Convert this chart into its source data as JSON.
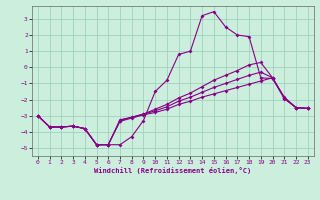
{
  "xlabel": "Windchill (Refroidissement éolien,°C)",
  "xlim": [
    -0.5,
    23.5
  ],
  "ylim": [
    -5.5,
    3.8
  ],
  "yticks": [
    3,
    2,
    1,
    0,
    -1,
    -2,
    -3,
    -4,
    -5
  ],
  "xticks": [
    0,
    1,
    2,
    3,
    4,
    5,
    6,
    7,
    8,
    9,
    10,
    11,
    12,
    13,
    14,
    15,
    16,
    17,
    18,
    19,
    20,
    21,
    22,
    23
  ],
  "bg_color": "#cceedd",
  "grid_color": "#99ccbb",
  "line_color": "#880088",
  "line1_x": [
    0,
    1,
    2,
    3,
    4,
    5,
    6,
    7,
    8,
    9,
    10,
    11,
    12,
    13,
    14,
    15,
    16,
    17,
    18,
    19,
    20,
    21,
    22,
    23
  ],
  "line1_y": [
    -3.0,
    -3.7,
    -3.7,
    -3.65,
    -3.8,
    -4.8,
    -4.8,
    -4.8,
    -4.3,
    -3.3,
    -1.5,
    -0.8,
    0.8,
    1.0,
    3.2,
    3.45,
    2.5,
    2.0,
    1.9,
    -0.65,
    -0.7,
    -1.9,
    -2.5,
    -2.55
  ],
  "line2_x": [
    0,
    1,
    2,
    3,
    4,
    5,
    6,
    7,
    8,
    9,
    10,
    11,
    12,
    13,
    14,
    15,
    16,
    17,
    18,
    19,
    20,
    21,
    22,
    23
  ],
  "line2_y": [
    -3.0,
    -3.7,
    -3.7,
    -3.65,
    -3.8,
    -4.8,
    -4.8,
    -3.25,
    -3.1,
    -2.9,
    -2.6,
    -2.3,
    -1.9,
    -1.6,
    -1.2,
    -0.8,
    -0.5,
    -0.2,
    0.15,
    0.3,
    -0.65,
    -1.85,
    -2.5,
    -2.55
  ],
  "line3_x": [
    0,
    1,
    2,
    3,
    4,
    5,
    6,
    7,
    8,
    9,
    10,
    11,
    12,
    13,
    14,
    15,
    16,
    17,
    18,
    19,
    20,
    21,
    22,
    23
  ],
  "line3_y": [
    -3.0,
    -3.7,
    -3.7,
    -3.65,
    -3.8,
    -4.8,
    -4.8,
    -3.3,
    -3.1,
    -2.9,
    -2.7,
    -2.45,
    -2.1,
    -1.85,
    -1.55,
    -1.25,
    -1.0,
    -0.75,
    -0.5,
    -0.3,
    -0.65,
    -1.9,
    -2.5,
    -2.55
  ],
  "line4_x": [
    0,
    1,
    2,
    3,
    4,
    5,
    6,
    7,
    8,
    9,
    10,
    11,
    12,
    13,
    14,
    15,
    16,
    17,
    18,
    19,
    20,
    21,
    22,
    23
  ],
  "line4_y": [
    -3.0,
    -3.7,
    -3.7,
    -3.65,
    -3.8,
    -4.8,
    -4.8,
    -3.35,
    -3.15,
    -2.95,
    -2.8,
    -2.6,
    -2.3,
    -2.1,
    -1.85,
    -1.65,
    -1.45,
    -1.25,
    -1.05,
    -0.85,
    -0.65,
    -1.95,
    -2.5,
    -2.55
  ]
}
